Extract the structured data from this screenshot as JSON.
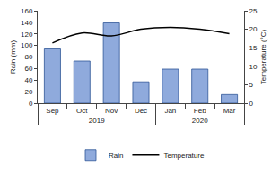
{
  "chart_data": {
    "type": "bar",
    "categories": [
      "Sep",
      "Oct",
      "Nov",
      "Dec",
      "Jan",
      "Feb",
      "Mar"
    ],
    "groups": [
      "2019",
      "2019",
      "2019",
      "2019",
      "2020",
      "2020",
      "2020"
    ],
    "series": [
      {
        "name": "Rain",
        "type": "bar",
        "color": "#8faadc",
        "values": [
          94,
          73,
          139,
          37,
          59,
          59,
          15
        ]
      },
      {
        "name": "Temperature",
        "type": "line",
        "axis": "y2",
        "color": "#000000",
        "values": [
          16.3,
          19,
          18.2,
          20,
          20.5,
          20,
          18.8
        ]
      }
    ],
    "y_label": "Rain (mm)",
    "y2_label": "Temperature (°C)",
    "ylim": [
      0,
      160
    ],
    "yticks": [
      0,
      20,
      40,
      60,
      80,
      100,
      120,
      140,
      160
    ],
    "y2lim": [
      0,
      25
    ],
    "y2ticks": [
      0,
      5,
      10,
      15,
      20,
      25
    ],
    "grid": false,
    "legend": "bottom"
  }
}
